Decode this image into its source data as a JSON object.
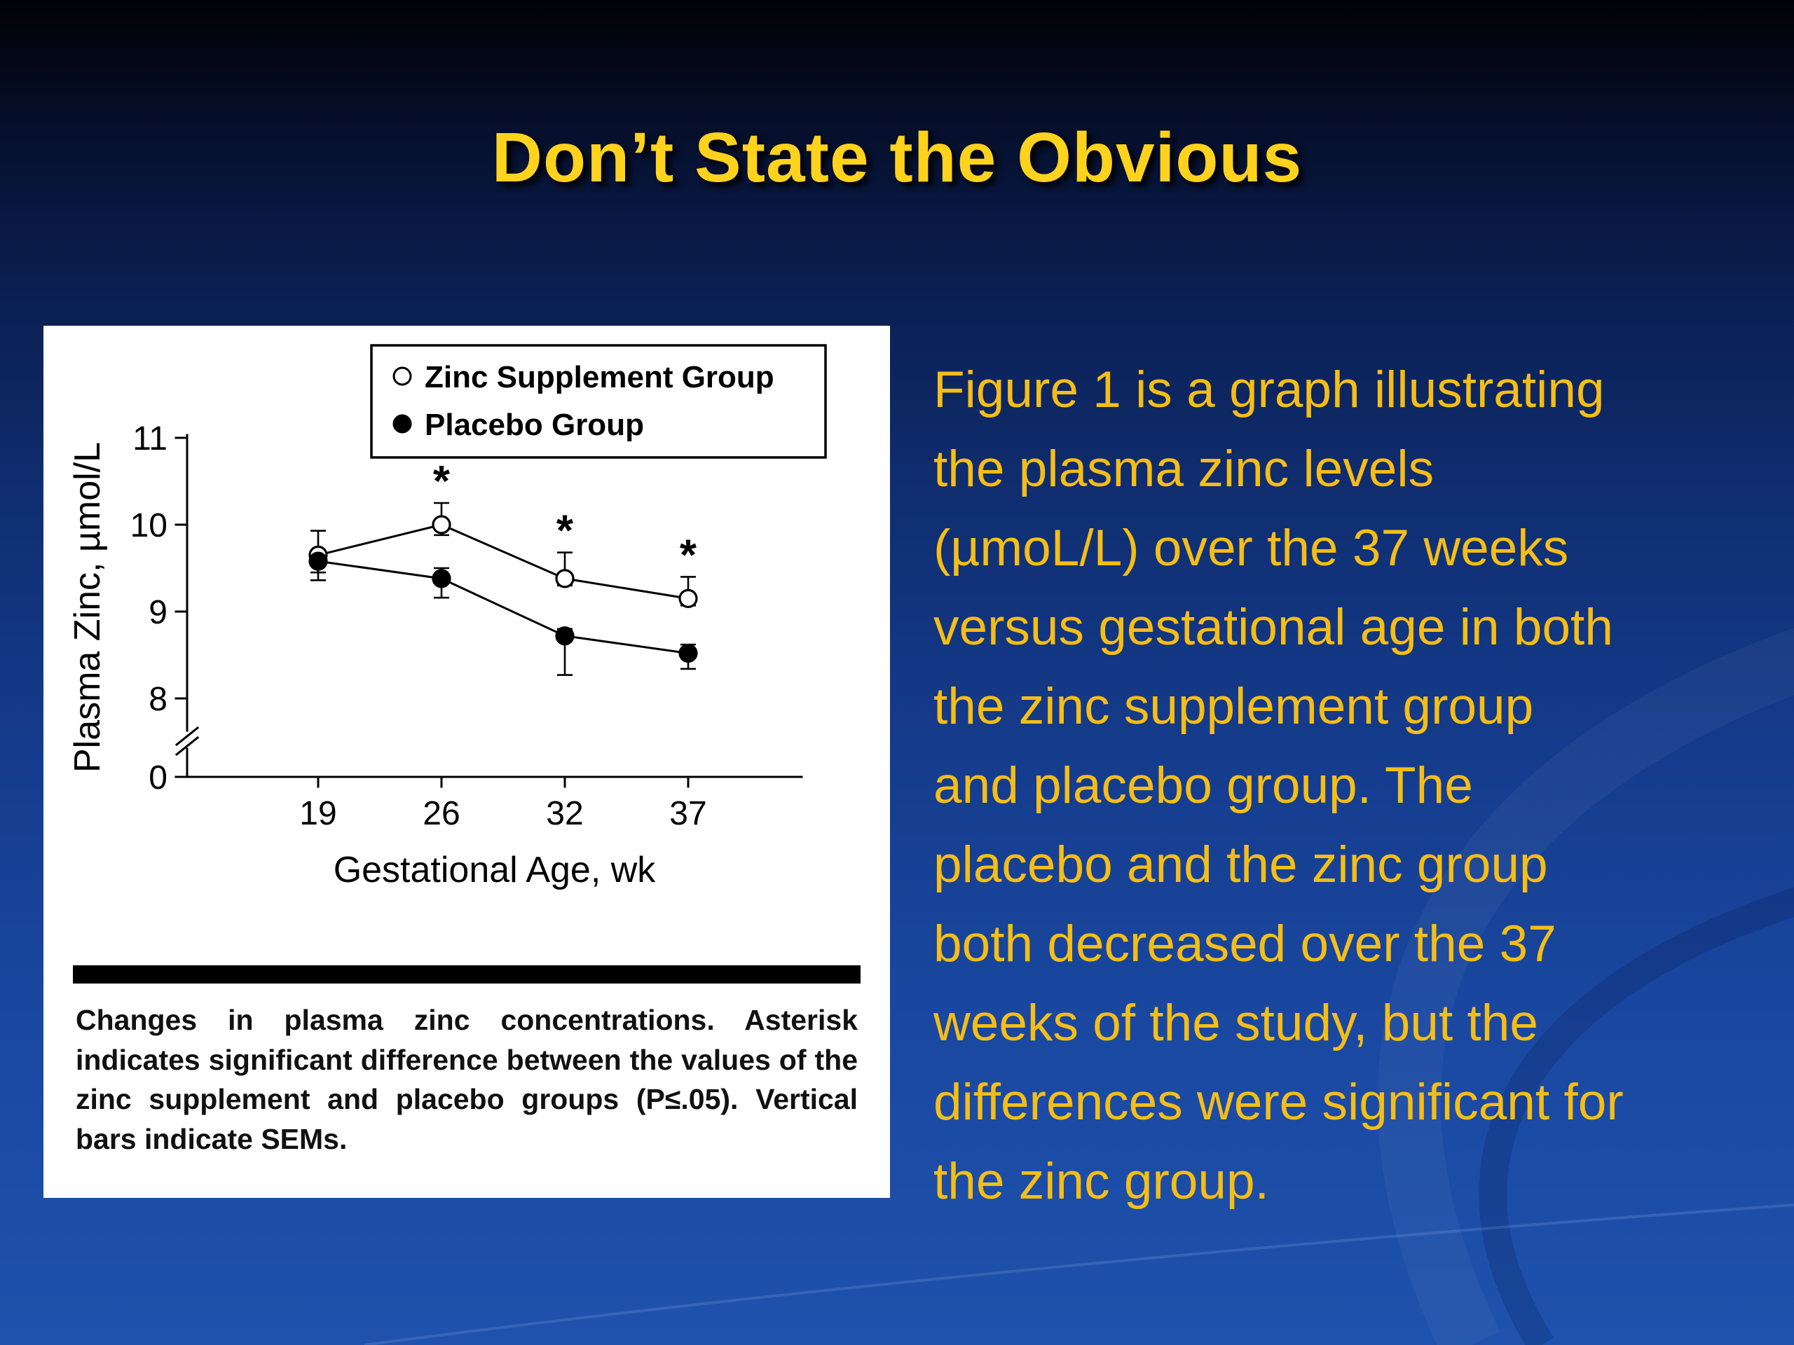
{
  "slide": {
    "title": "Don’t State the Obvious",
    "body_lines": [
      "Figure 1 is a graph illustrating",
      "the plasma zinc levels",
      "(µmoL/L) over the 37 weeks",
      "versus gestational age in both",
      "the zinc supplement group",
      "and placebo group. The",
      "placebo and the zinc group",
      "both decreased over the 37",
      "weeks of the study, but the",
      "differences were significant for",
      "the zinc group."
    ],
    "colors": {
      "title": "#FFD21E",
      "body_text": "#F5BD17",
      "background_top": "#010104",
      "background_bottom": "#1E52AC",
      "figure_background": "#FFFFFF"
    }
  },
  "figure": {
    "caption": "Changes in plasma zinc concentrations. Asterisk indicates significant difference between the values of the zinc supplement and placebo groups (P≤.05). Vertical bars indicate SEMs."
  },
  "chart_data": {
    "type": "line",
    "title": "",
    "xlabel": "Gestational Age, wk",
    "ylabel": "Plasma Zinc, µmol/L",
    "x": [
      19,
      26,
      32,
      37
    ],
    "yticks": [
      0,
      8,
      9,
      10,
      11
    ],
    "ylim": [
      8,
      11
    ],
    "axis_break": true,
    "legend_position": "top-right-inside",
    "grid": false,
    "series": [
      {
        "name": "Zinc Supplement Group",
        "marker": "open-circle",
        "values": [
          9.65,
          10.0,
          9.38,
          9.15
        ],
        "sem_upper": [
          0.28,
          0.25,
          0.3,
          0.25
        ],
        "sem_lower": [
          0.2,
          0.12,
          0.08,
          0.08
        ],
        "significant": [
          false,
          true,
          true,
          true
        ]
      },
      {
        "name": "Placebo Group",
        "marker": "filled-circle",
        "values": [
          9.58,
          9.38,
          8.72,
          8.52
        ],
        "sem_upper": [
          0.1,
          0.12,
          0.08,
          0.1
        ],
        "sem_lower": [
          0.22,
          0.22,
          0.45,
          0.18
        ],
        "significant": [
          false,
          false,
          false,
          false
        ]
      }
    ],
    "annotations": "Asterisks above Zinc Supplement Group points at weeks 26, 32 and 37; vertical bars are SEMs"
  }
}
